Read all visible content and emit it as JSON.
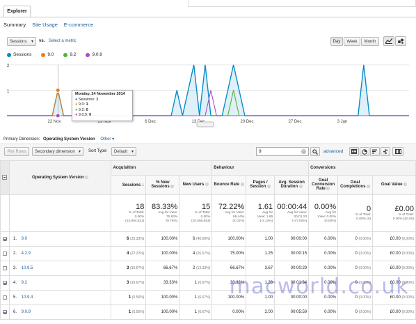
{
  "tabs": {
    "explorer": "Explorer"
  },
  "subtabs": [
    {
      "label": "Summary",
      "active": true
    },
    {
      "label": "Site Usage",
      "active": false
    },
    {
      "label": "E-commerce",
      "active": false
    }
  ],
  "metric_select": {
    "value": "Sessions",
    "vs": "vs.",
    "select_metric": "Select a metric"
  },
  "period_buttons": [
    {
      "label": "Day",
      "active": true
    },
    {
      "label": "Week",
      "active": false
    },
    {
      "label": "Month",
      "active": false
    }
  ],
  "legend": [
    {
      "name": "Sessions",
      "color": "#058dc7"
    },
    {
      "name": "9.0",
      "color": "#ed7e17"
    },
    {
      "name": "9.2",
      "color": "#50b432"
    },
    {
      "name": "9.0.9",
      "color": "#af49c5"
    }
  ],
  "chart_data": {
    "type": "line",
    "y_ticks": [
      "2",
      "1"
    ],
    "ylim": [
      0,
      2
    ],
    "x_labels": [
      "22 Nov",
      "29 Nov",
      "6 Dec",
      "13 Dec",
      "20 Dec",
      "27 Dec",
      "3 Jan"
    ],
    "series": [
      {
        "name": "Sessions",
        "color": "#058dc7",
        "values": [
          0,
          0,
          0,
          0,
          0,
          0,
          0,
          0,
          0,
          1,
          0,
          0,
          0,
          0,
          0,
          0,
          0,
          0,
          0,
          0,
          0,
          0,
          0,
          0,
          0,
          0,
          0,
          0,
          0,
          0,
          1,
          0,
          1,
          2,
          0,
          2,
          0,
          0,
          0,
          1,
          2,
          1,
          0,
          0,
          0,
          0,
          0,
          0,
          0,
          0,
          0,
          0,
          0,
          0,
          0,
          0,
          0,
          0,
          0,
          0,
          0,
          0,
          0,
          2,
          0,
          0,
          0,
          0,
          0,
          0,
          0,
          0
        ]
      },
      {
        "name": "9.0",
        "color": "#ed7e17",
        "values": [
          0,
          0,
          0,
          0,
          0,
          0,
          0,
          0,
          0,
          1,
          0,
          0,
          0,
          0,
          0,
          0,
          0,
          0,
          0,
          0,
          0,
          0,
          0,
          0,
          0,
          0,
          0,
          0,
          0,
          0,
          0,
          0,
          0,
          0,
          0,
          0,
          0,
          0,
          0,
          0,
          0,
          0,
          0,
          0,
          0,
          0,
          0,
          0,
          0,
          0,
          0,
          0,
          0,
          0,
          0,
          0,
          0,
          0,
          0,
          0,
          0,
          0,
          0,
          0,
          0,
          0,
          0,
          0,
          0,
          0,
          0,
          0
        ]
      },
      {
        "name": "9.2",
        "color": "#50b432",
        "values": [
          0,
          0,
          0,
          0,
          0,
          0,
          0,
          0,
          0,
          0,
          0,
          0,
          0,
          0,
          0,
          0,
          0,
          0,
          0,
          0,
          0,
          0,
          0,
          0,
          0,
          0,
          0,
          0,
          0,
          0,
          0,
          0,
          0,
          0,
          0,
          0,
          0,
          0,
          0,
          0,
          1,
          0,
          0,
          0,
          0,
          0,
          0,
          0,
          0,
          0,
          0,
          0,
          0,
          0,
          0,
          0,
          0,
          0,
          0,
          0,
          0,
          0,
          0,
          0,
          0,
          0,
          0,
          0,
          0,
          0,
          0,
          0
        ]
      },
      {
        "name": "9.0.9",
        "color": "#af49c5",
        "values": [
          0,
          0,
          0,
          0,
          0,
          0,
          0,
          0,
          0,
          0,
          0,
          0,
          0,
          0,
          0,
          0,
          0,
          0,
          0,
          0,
          0,
          0,
          0,
          0,
          0,
          0,
          0,
          0,
          0,
          0,
          0,
          0,
          0,
          0,
          0,
          0,
          1,
          0,
          0,
          0,
          0,
          0,
          0,
          0,
          0,
          0,
          0,
          0,
          0,
          0,
          0,
          0,
          0,
          0,
          0,
          0,
          0,
          0,
          0,
          0,
          0,
          0,
          0,
          0,
          0,
          0,
          0,
          0,
          0,
          0,
          0,
          0
        ]
      }
    ],
    "tooltip": {
      "date": "Monday, 24 November 2014",
      "rows": [
        {
          "label": "Sessions:",
          "value": "1",
          "color": "#058dc7"
        },
        {
          "label": "9.0:",
          "value": "1",
          "color": "#ed7e17"
        },
        {
          "label": "9.2:",
          "value": "0",
          "color": "#50b432"
        },
        {
          "label": "9.0.9:",
          "value": "0",
          "color": "#af49c5"
        }
      ]
    }
  },
  "primary_dimension": {
    "label": "Primary Dimension:",
    "value": "Operating System Version",
    "other": "Other"
  },
  "toolbar": {
    "plot_rows": "Plot Rows",
    "secondary_dimension": "Secondary dimension",
    "sort_type_label": "Sort Type:",
    "sort_type_value": "Default",
    "search_value": "9",
    "advanced": "advanced"
  },
  "table": {
    "dimension_header": "Operating System Version",
    "groups": {
      "acquisition": "Acquisition",
      "behaviour": "Behaviour",
      "conversions": "Conversions"
    },
    "columns": [
      "Sessions",
      "% New Sessions",
      "New Users",
      "Bounce Rate",
      "Pages / Session",
      "Avg. Session Duration",
      "Goal Conversion Rate",
      "Goal Completions",
      "Goal Value"
    ],
    "totals": [
      {
        "big": "18",
        "l1": "% of Total:",
        "l2": "0.00%",
        "l3": "(13,904,621)"
      },
      {
        "big": "83.33%",
        "l1": "Avg for View:",
        "l2": "75.92%",
        "l3": "(9.76%)"
      },
      {
        "big": "15",
        "l1": "% of Total:",
        "l2": "0.00%",
        "l3": "(10,556,653)"
      },
      {
        "big": "72.22%",
        "l1": "Avg for View:",
        "l2": "69.44%",
        "l3": "(4.01%)"
      },
      {
        "big": "1.61",
        "l1": "Avg for",
        "l2": "View: 1.65",
        "l3": "(-2.14%)"
      },
      {
        "big": "00:00:44",
        "l1": "Avg for View:",
        "l2": "00:01:23",
        "l3": "(-47.00%)"
      },
      {
        "big": "0.00%",
        "l1": "Avg for",
        "l2": "View: 0.00%",
        "l3": "(0.00%)"
      },
      {
        "big": "0",
        "l1": "% of Total:",
        "l2": "0.00% (0)",
        "l3": ""
      },
      {
        "big": "£0.00",
        "l1": "% of Total:",
        "l2": "0.00% (£0.00)",
        "l3": ""
      }
    ],
    "rows": [
      {
        "checked": true,
        "idx": "1.",
        "name": "9.0",
        "sessions": "6",
        "sessions_pct": "(33.33%)",
        "new_sess": "100.00%",
        "new_users": "6",
        "new_users_pct": "(40.00%)",
        "bounce": "100.00%",
        "pages": "1.00",
        "duration": "00:00:00",
        "conv_rate": "0.00%",
        "completions": "0",
        "completions_pct": "(0.00%)",
        "value": "£0.00",
        "value_pct": "(0.00%)"
      },
      {
        "checked": false,
        "idx": "2.",
        "name": "4.2.9",
        "sessions": "4",
        "sessions_pct": "(22.22%)",
        "new_sess": "100.00%",
        "new_users": "4",
        "new_users_pct": "(26.67%)",
        "bounce": "75.00%",
        "pages": "1.25",
        "duration": "00:00:15",
        "conv_rate": "0.00%",
        "completions": "0",
        "completions_pct": "(0.00%)",
        "value": "£0.00",
        "value_pct": "(0.00%)"
      },
      {
        "checked": false,
        "idx": "3.",
        "name": "10.9.5",
        "sessions": "3",
        "sessions_pct": "(16.67%)",
        "new_sess": "66.67%",
        "new_users": "2",
        "new_users_pct": "(13.33%)",
        "bounce": "66.67%",
        "pages": "3.67",
        "duration": "00:00:29",
        "conv_rate": "0.00%",
        "completions": "0",
        "completions_pct": "(0.00%)",
        "value": "£0.00",
        "value_pct": "(0.00%)"
      },
      {
        "checked": true,
        "idx": "4.",
        "name": "9.2",
        "sessions": "3",
        "sessions_pct": "(16.67%)",
        "new_sess": "33.33%",
        "new_users": "1",
        "new_users_pct": "(6.67%)",
        "bounce": "33.33%",
        "pages": "1.33",
        "duration": "00:01:34",
        "conv_rate": "0.00%",
        "completions": "0",
        "completions_pct": "(0.00%)",
        "value": "£0.00",
        "value_pct": "(0.00%)"
      },
      {
        "checked": false,
        "idx": "5.",
        "name": "10.9.4",
        "sessions": "1",
        "sessions_pct": "(5.56%)",
        "new_sess": "100.00%",
        "new_users": "1",
        "new_users_pct": "(6.67%)",
        "bounce": "100.00%",
        "pages": "1.00",
        "duration": "00:00:00",
        "conv_rate": "0.00%",
        "completions": "0",
        "completions_pct": "(0.00%)",
        "value": "£0.00",
        "value_pct": "(0.00%)"
      },
      {
        "checked": true,
        "idx": "6.",
        "name": "9.0.9",
        "sessions": "1",
        "sessions_pct": "(5.56%)",
        "new_sess": "100.00%",
        "new_users": "1",
        "new_users_pct": "(6.67%)",
        "bounce": "0.00%",
        "pages": "2.00",
        "duration": "00:05:59",
        "conv_rate": "0.00%",
        "completions": "0",
        "completions_pct": "(0.00%)",
        "value": "£0.00",
        "value_pct": "(0.00%)"
      }
    ]
  },
  "watermark": "macworld.co.uk"
}
